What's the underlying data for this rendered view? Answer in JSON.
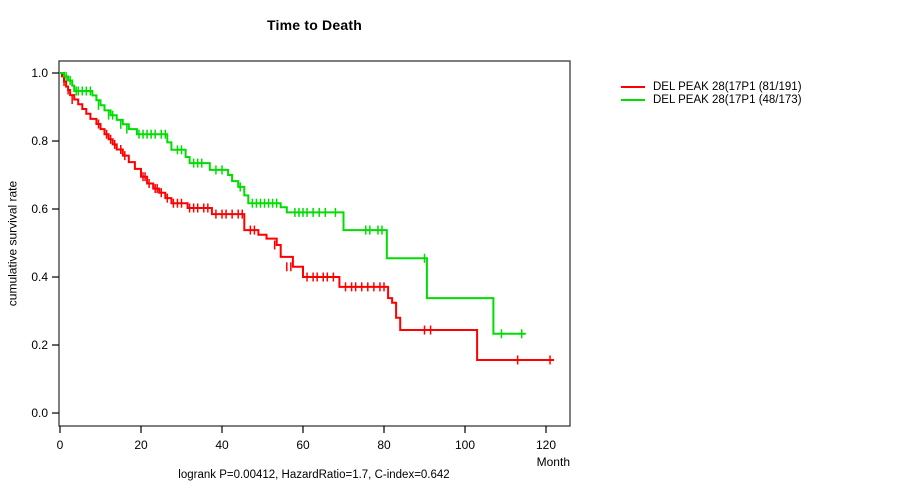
{
  "title": "Time to Death",
  "axes": {
    "x": {
      "label": "Month"
    },
    "y": {
      "label": "cumulative survival rate"
    }
  },
  "annotation": "logrank P=0.00412, HazardRatio=1.7, C-index=0.642",
  "stats": {
    "logrank_p": "0.00412",
    "hazard_ratio": "1.7",
    "c_index": "0.642"
  },
  "chart_data": {
    "type": "line",
    "subtype": "kaplan-meier-step-curves",
    "title": "Time to Death",
    "xlabel": "Month",
    "ylabel": "cumulative survival rate",
    "xlim": [
      0,
      128
    ],
    "ylim": [
      0.0,
      1.0
    ],
    "x_ticks": [
      0,
      20,
      40,
      60,
      80,
      100,
      120
    ],
    "y_ticks": [
      "0.0",
      "0.2",
      "0.4",
      "0.6",
      "0.8",
      "1.0"
    ],
    "grid": false,
    "legend_position": "right-outside",
    "series": [
      {
        "name": "DEL PEAK 28(17P1 (81/191)",
        "color": "#ff0000",
        "end_month": 122,
        "steps": [
          [
            0,
            1.0
          ],
          [
            0.5,
            0.99
          ],
          [
            1,
            0.975
          ],
          [
            1.5,
            0.96
          ],
          [
            2,
            0.95
          ],
          [
            2.5,
            0.935
          ],
          [
            3.5,
            0.922
          ],
          [
            4.5,
            0.908
          ],
          [
            5.5,
            0.894
          ],
          [
            6.5,
            0.88
          ],
          [
            7.5,
            0.865
          ],
          [
            9,
            0.85
          ],
          [
            10,
            0.835
          ],
          [
            11,
            0.82
          ],
          [
            12,
            0.805
          ],
          [
            13,
            0.79
          ],
          [
            14,
            0.775
          ],
          [
            15.5,
            0.757
          ],
          [
            17,
            0.738
          ],
          [
            18.5,
            0.718
          ],
          [
            20,
            0.695
          ],
          [
            21.5,
            0.675
          ],
          [
            23,
            0.66
          ],
          [
            24.5,
            0.648
          ],
          [
            26,
            0.632
          ],
          [
            27.5,
            0.617
          ],
          [
            31.5,
            0.603
          ],
          [
            37.5,
            0.585
          ],
          [
            45.5,
            0.538
          ],
          [
            49,
            0.524
          ],
          [
            51,
            0.513
          ],
          [
            53.5,
            0.494
          ],
          [
            54.5,
            0.459
          ],
          [
            57.5,
            0.43
          ],
          [
            60,
            0.4
          ],
          [
            69,
            0.371
          ],
          [
            81,
            0.338
          ],
          [
            82,
            0.324
          ],
          [
            83,
            0.28
          ],
          [
            84,
            0.244
          ],
          [
            103,
            0.156
          ]
        ],
        "censors": [
          [
            1,
            0.975
          ],
          [
            2,
            0.95
          ],
          [
            3,
            0.922
          ],
          [
            9.5,
            0.85
          ],
          [
            11.5,
            0.82
          ],
          [
            12.5,
            0.805
          ],
          [
            13.5,
            0.79
          ],
          [
            15,
            0.775
          ],
          [
            16,
            0.757
          ],
          [
            20.5,
            0.695
          ],
          [
            21,
            0.695
          ],
          [
            22,
            0.675
          ],
          [
            23.5,
            0.66
          ],
          [
            24,
            0.66
          ],
          [
            25,
            0.648
          ],
          [
            26.5,
            0.632
          ],
          [
            28,
            0.617
          ],
          [
            29,
            0.617
          ],
          [
            30,
            0.617
          ],
          [
            32,
            0.603
          ],
          [
            33,
            0.603
          ],
          [
            34,
            0.603
          ],
          [
            35.5,
            0.603
          ],
          [
            36.5,
            0.603
          ],
          [
            38.5,
            0.585
          ],
          [
            40,
            0.585
          ],
          [
            41,
            0.585
          ],
          [
            42.5,
            0.585
          ],
          [
            44,
            0.585
          ],
          [
            45,
            0.585
          ],
          [
            47,
            0.538
          ],
          [
            48,
            0.538
          ],
          [
            53,
            0.494
          ],
          [
            56,
            0.43
          ],
          [
            57,
            0.43
          ],
          [
            61,
            0.4
          ],
          [
            62.5,
            0.4
          ],
          [
            63.5,
            0.4
          ],
          [
            65,
            0.4
          ],
          [
            66,
            0.4
          ],
          [
            67.5,
            0.4
          ],
          [
            70.5,
            0.371
          ],
          [
            72,
            0.371
          ],
          [
            73,
            0.371
          ],
          [
            74.5,
            0.371
          ],
          [
            76,
            0.371
          ],
          [
            77.5,
            0.371
          ],
          [
            79,
            0.371
          ],
          [
            80,
            0.371
          ],
          [
            90,
            0.244
          ],
          [
            91.5,
            0.244
          ],
          [
            113,
            0.156
          ],
          [
            121,
            0.156
          ]
        ]
      },
      {
        "name": "DEL PEAK 28(17P1 (48/173)",
        "color": "#00dd00",
        "end_month": 115,
        "steps": [
          [
            0,
            1.0
          ],
          [
            1,
            0.99
          ],
          [
            2,
            0.978
          ],
          [
            3,
            0.963
          ],
          [
            3.5,
            0.947
          ],
          [
            8,
            0.934
          ],
          [
            9,
            0.92
          ],
          [
            10,
            0.905
          ],
          [
            11,
            0.89
          ],
          [
            12.5,
            0.876
          ],
          [
            14,
            0.862
          ],
          [
            15.5,
            0.849
          ],
          [
            17,
            0.835
          ],
          [
            19,
            0.82
          ],
          [
            26.5,
            0.796
          ],
          [
            27.5,
            0.774
          ],
          [
            31,
            0.753
          ],
          [
            32,
            0.735
          ],
          [
            37,
            0.715
          ],
          [
            41.5,
            0.7
          ],
          [
            42.5,
            0.682
          ],
          [
            44,
            0.665
          ],
          [
            45.5,
            0.64
          ],
          [
            46.5,
            0.617
          ],
          [
            54.5,
            0.605
          ],
          [
            56,
            0.59
          ],
          [
            70,
            0.538
          ],
          [
            80.7,
            0.455
          ],
          [
            90.6,
            0.338
          ],
          [
            107,
            0.233
          ]
        ],
        "censors": [
          [
            1.5,
            0.99
          ],
          [
            2.5,
            0.978
          ],
          [
            4,
            0.947
          ],
          [
            4.5,
            0.947
          ],
          [
            5.5,
            0.947
          ],
          [
            6.5,
            0.947
          ],
          [
            7.5,
            0.947
          ],
          [
            9.5,
            0.905
          ],
          [
            12,
            0.876
          ],
          [
            13,
            0.876
          ],
          [
            15,
            0.849
          ],
          [
            16.5,
            0.835
          ],
          [
            19.5,
            0.82
          ],
          [
            20.5,
            0.82
          ],
          [
            21.5,
            0.82
          ],
          [
            22.5,
            0.82
          ],
          [
            23.5,
            0.82
          ],
          [
            25,
            0.82
          ],
          [
            26,
            0.82
          ],
          [
            29,
            0.774
          ],
          [
            30,
            0.774
          ],
          [
            33,
            0.735
          ],
          [
            34,
            0.735
          ],
          [
            35,
            0.735
          ],
          [
            38.5,
            0.715
          ],
          [
            40,
            0.715
          ],
          [
            44.5,
            0.665
          ],
          [
            47.5,
            0.617
          ],
          [
            48.5,
            0.617
          ],
          [
            49.5,
            0.617
          ],
          [
            50.5,
            0.617
          ],
          [
            51.5,
            0.617
          ],
          [
            52.5,
            0.617
          ],
          [
            53.5,
            0.617
          ],
          [
            58,
            0.59
          ],
          [
            59,
            0.59
          ],
          [
            60,
            0.59
          ],
          [
            61,
            0.59
          ],
          [
            62.5,
            0.59
          ],
          [
            64,
            0.59
          ],
          [
            65.5,
            0.59
          ],
          [
            68,
            0.59
          ],
          [
            75.5,
            0.538
          ],
          [
            76.5,
            0.538
          ],
          [
            78.5,
            0.538
          ],
          [
            79.5,
            0.538
          ],
          [
            90,
            0.455
          ],
          [
            109,
            0.233
          ],
          [
            114,
            0.233
          ]
        ]
      }
    ]
  }
}
